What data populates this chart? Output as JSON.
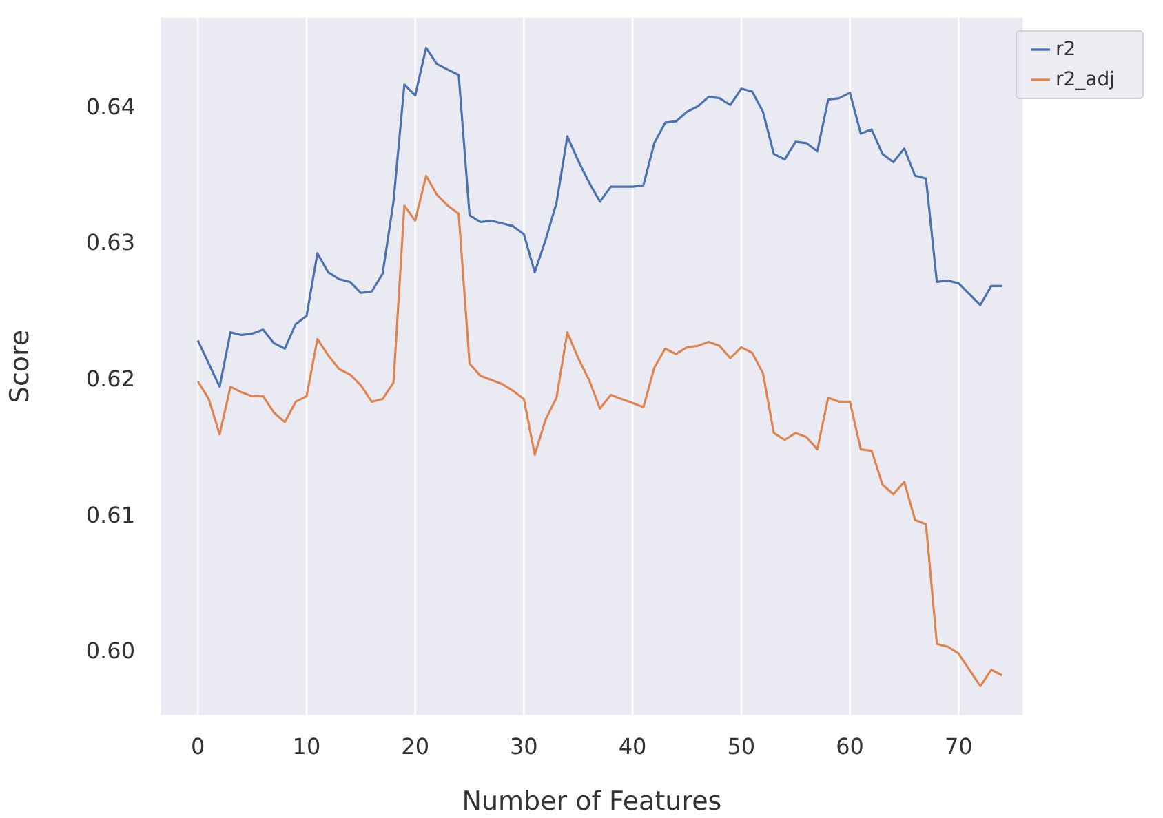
{
  "chart_data": {
    "type": "line",
    "xlabel": "Number of Features",
    "ylabel": "Score",
    "x": [
      0,
      1,
      2,
      3,
      4,
      5,
      6,
      7,
      8,
      9,
      10,
      11,
      12,
      13,
      14,
      15,
      16,
      17,
      18,
      19,
      20,
      21,
      22,
      23,
      24,
      25,
      26,
      27,
      28,
      29,
      30,
      31,
      32,
      33,
      34,
      35,
      36,
      37,
      38,
      39,
      40,
      41,
      42,
      43,
      44,
      45,
      46,
      47,
      48,
      49,
      50,
      51,
      52,
      53,
      54,
      55,
      56,
      57,
      58,
      59,
      60,
      61,
      62,
      63,
      64,
      65,
      66,
      67,
      68,
      69,
      70,
      71,
      72,
      73,
      74
    ],
    "series": [
      {
        "name": "r2",
        "color": "#4c72b0",
        "values": [
          0.6228,
          0.6211,
          0.6194,
          0.6234,
          0.6232,
          0.6233,
          0.6236,
          0.6226,
          0.6222,
          0.624,
          0.6246,
          0.6292,
          0.6278,
          0.6273,
          0.6271,
          0.6263,
          0.6264,
          0.6277,
          0.633,
          0.6416,
          0.6408,
          0.6443,
          0.6431,
          0.6427,
          0.6423,
          0.632,
          0.6315,
          0.6316,
          0.6314,
          0.6312,
          0.6306,
          0.6278,
          0.6302,
          0.6329,
          0.6378,
          0.636,
          0.6344,
          0.633,
          0.6341,
          0.6341,
          0.6341,
          0.6342,
          0.6373,
          0.6388,
          0.6389,
          0.6396,
          0.64,
          0.6407,
          0.6406,
          0.6401,
          0.6413,
          0.6411,
          0.6396,
          0.6365,
          0.6361,
          0.6374,
          0.6373,
          0.6367,
          0.6405,
          0.6406,
          0.641,
          0.638,
          0.6383,
          0.6365,
          0.6359,
          0.6369,
          0.6349,
          0.6347,
          0.6271,
          0.6272,
          0.627,
          0.6262,
          0.6254,
          0.6268,
          0.6268
        ]
      },
      {
        "name": "r2_adj",
        "color": "#dd8452",
        "values": [
          0.6198,
          0.6185,
          0.6159,
          0.6194,
          0.619,
          0.6187,
          0.6187,
          0.6175,
          0.6168,
          0.6183,
          0.6187,
          0.6229,
          0.6217,
          0.6207,
          0.6203,
          0.6195,
          0.6183,
          0.6185,
          0.6197,
          0.6327,
          0.6316,
          0.6349,
          0.6335,
          0.6327,
          0.6321,
          0.6211,
          0.6202,
          0.6199,
          0.6196,
          0.6191,
          0.6185,
          0.6144,
          0.617,
          0.6186,
          0.6234,
          0.6215,
          0.6199,
          0.6178,
          0.6188,
          0.6185,
          0.6182,
          0.6179,
          0.6208,
          0.6222,
          0.6218,
          0.6223,
          0.6224,
          0.6227,
          0.6224,
          0.6215,
          0.6223,
          0.6219,
          0.6204,
          0.616,
          0.6155,
          0.616,
          0.6157,
          0.6148,
          0.6186,
          0.6183,
          0.6183,
          0.6148,
          0.6147,
          0.6122,
          0.6115,
          0.6124,
          0.6096,
          0.6093,
          0.6005,
          0.6003,
          0.5998,
          0.5986,
          0.5974,
          0.5986,
          0.5982
        ]
      }
    ],
    "xlim": [
      -3.5,
      76
    ],
    "xticks": [
      0,
      10,
      20,
      30,
      40,
      50,
      60,
      70
    ],
    "ylim": [
      0.5952,
      0.6466
    ],
    "yticks": [
      {
        "value": 0.6,
        "label": "0.60"
      },
      0.61,
      0.62,
      0.63,
      0.64
    ],
    "grid": true,
    "legend": "top right",
    "marker": "none",
    "line_style": "solid"
  }
}
